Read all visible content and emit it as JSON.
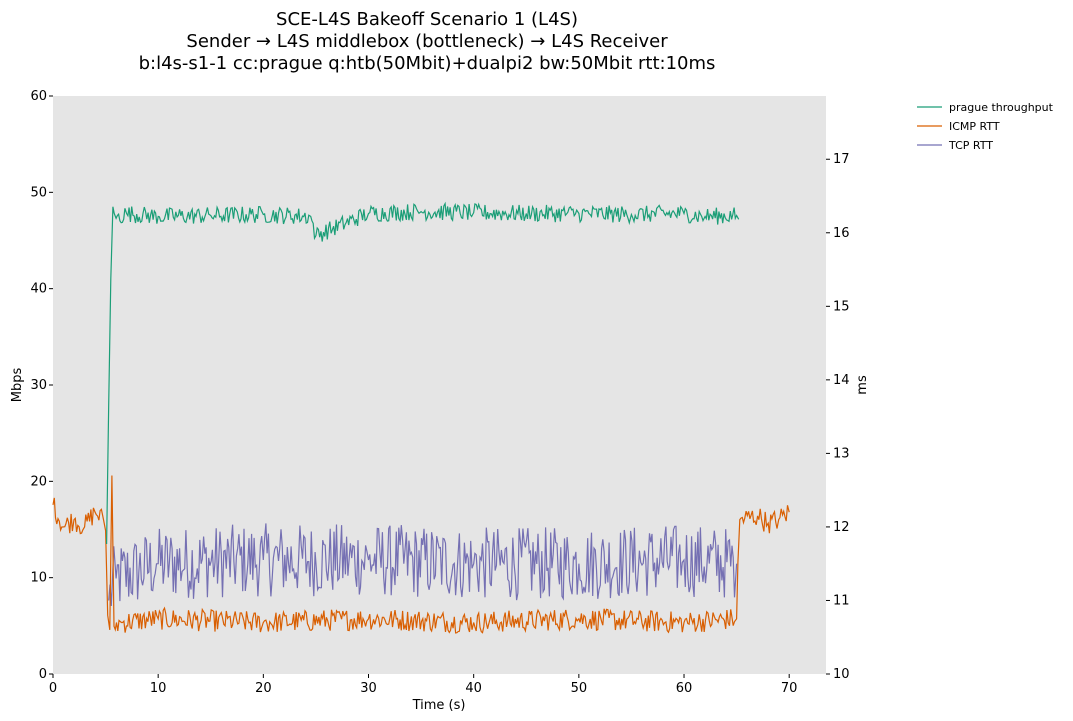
{
  "chart_data": {
    "type": "line",
    "title_lines": [
      "SCE-L4S Bakeoff Scenario 1 (L4S)",
      "Sender → L4S middlebox (bottleneck) → L4S Receiver",
      "b:l4s-s1-1 cc:prague q:htb(50Mbit)+dualpi2 bw:50Mbit rtt:10ms"
    ],
    "xlabel": "Time (s)",
    "ylabel": "Mbps",
    "y2label": "ms",
    "xlim": [
      0,
      73.5
    ],
    "ylim": [
      0,
      60
    ],
    "y2lim": [
      10,
      17.86
    ],
    "x_ticks": [
      0,
      10,
      20,
      30,
      40,
      50,
      60,
      70
    ],
    "y_ticks": [
      0,
      10,
      20,
      30,
      40,
      50,
      60
    ],
    "y2_ticks": [
      10,
      11,
      12,
      13,
      14,
      15,
      16,
      17
    ],
    "plot_background": "#e5e5e5",
    "grid": false,
    "legend_position": "outside-top-right",
    "series": [
      {
        "name": "prague throughput",
        "axis": "left",
        "color": "#1b9e77",
        "points": [
          [
            5.1,
            13.5
          ],
          [
            5.3,
            28
          ],
          [
            5.5,
            41
          ],
          [
            5.7,
            48.5
          ],
          [
            6.0,
            47.3
          ],
          [
            7,
            47.8
          ],
          [
            10,
            47.5
          ],
          [
            15,
            47.6
          ],
          [
            20,
            47.7
          ],
          [
            24.5,
            47.5
          ],
          [
            25,
            45.5
          ],
          [
            30,
            47.8
          ],
          [
            35,
            48.0
          ],
          [
            40,
            47.9
          ],
          [
            45,
            47.8
          ],
          [
            50,
            47.8
          ],
          [
            55,
            47.7
          ],
          [
            60,
            47.8
          ],
          [
            62,
            47.5
          ],
          [
            65,
            47.6
          ],
          [
            65.2,
            47.2
          ]
        ],
        "noise": 0.9
      },
      {
        "name": "ICMP RTT",
        "axis": "right",
        "color": "#d95f02",
        "points": [
          [
            0,
            12.3
          ],
          [
            1,
            12.0
          ],
          [
            2,
            12.1
          ],
          [
            3,
            12.0
          ],
          [
            4,
            12.2
          ],
          [
            4.8,
            12.1
          ],
          [
            5.0,
            11.95
          ],
          [
            5.2,
            10.8
          ],
          [
            5.4,
            10.6
          ],
          [
            5.6,
            12.7
          ],
          [
            5.8,
            10.65
          ],
          [
            6.5,
            10.7
          ],
          [
            10,
            10.75
          ],
          [
            20,
            10.7
          ],
          [
            30,
            10.75
          ],
          [
            40,
            10.7
          ],
          [
            50,
            10.75
          ],
          [
            60,
            10.7
          ],
          [
            65,
            10.75
          ],
          [
            65.3,
            12.1
          ],
          [
            67,
            12.15
          ],
          [
            68,
            12.05
          ],
          [
            69,
            12.1
          ],
          [
            70,
            12.2
          ]
        ],
        "noise": 0.15
      },
      {
        "name": "TCP RTT",
        "axis": "right",
        "color": "#7570b3",
        "points": [
          [
            5.3,
            11.0
          ],
          [
            6,
            11.3
          ],
          [
            10,
            11.5
          ],
          [
            20,
            11.55
          ],
          [
            30,
            11.55
          ],
          [
            40,
            11.5
          ],
          [
            50,
            11.5
          ],
          [
            60,
            11.55
          ],
          [
            65,
            11.5
          ]
        ],
        "noise": 0.5
      }
    ]
  }
}
